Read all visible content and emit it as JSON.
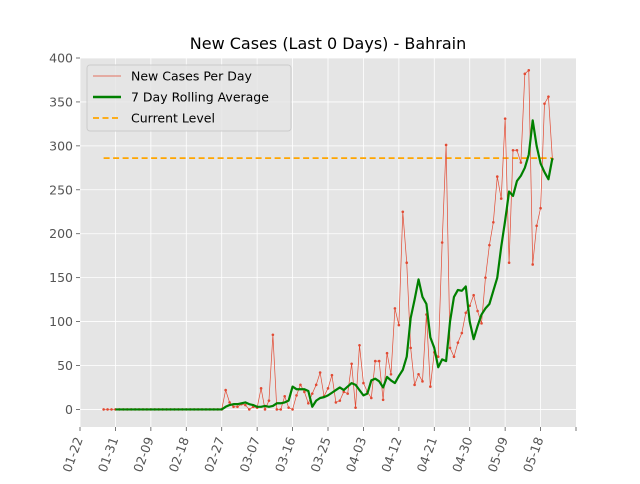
{
  "chart_data": {
    "type": "line",
    "title": "New Cases (Last 0 Days) - Bahrain",
    "xlabel": "",
    "ylabel": "",
    "ylim": [
      -20,
      400
    ],
    "xlim": [
      "2020-01-22",
      "2020-05-27"
    ],
    "grid": true,
    "legend_position": "top-left",
    "yticks": [
      0,
      50,
      100,
      150,
      200,
      250,
      300,
      350,
      400
    ],
    "xticks": [
      "01-22",
      "01-31",
      "02-09",
      "02-18",
      "02-27",
      "03-07",
      "03-16",
      "03-25",
      "04-03",
      "04-12",
      "04-21",
      "04-30",
      "05-09",
      "05-18"
    ],
    "xtick_dates": [
      "2020-01-22",
      "2020-01-31",
      "2020-02-09",
      "2020-02-18",
      "2020-02-27",
      "2020-03-07",
      "2020-03-16",
      "2020-03-25",
      "2020-04-03",
      "2020-04-12",
      "2020-04-21",
      "2020-04-30",
      "2020-05-09",
      "2020-05-18"
    ],
    "colors": {
      "daily": "#e24a33",
      "rolling": "#008000",
      "current": "#ffa500",
      "background": "#e5e5e5",
      "grid": "#ffffff"
    },
    "series": [
      {
        "name": "New Cases Per Day",
        "style": "thin line with point markers",
        "x": [
          "2020-01-28",
          "2020-01-29",
          "2020-01-30",
          "2020-01-31",
          "2020-02-01",
          "2020-02-02",
          "2020-02-03",
          "2020-02-04",
          "2020-02-05",
          "2020-02-06",
          "2020-02-07",
          "2020-02-08",
          "2020-02-09",
          "2020-02-10",
          "2020-02-11",
          "2020-02-12",
          "2020-02-13",
          "2020-02-14",
          "2020-02-15",
          "2020-02-16",
          "2020-02-17",
          "2020-02-18",
          "2020-02-19",
          "2020-02-20",
          "2020-02-21",
          "2020-02-22",
          "2020-02-23",
          "2020-02-24",
          "2020-02-25",
          "2020-02-26",
          "2020-02-27",
          "2020-02-28",
          "2020-02-29",
          "2020-03-01",
          "2020-03-02",
          "2020-03-03",
          "2020-03-04",
          "2020-03-05",
          "2020-03-06",
          "2020-03-07",
          "2020-03-08",
          "2020-03-09",
          "2020-03-10",
          "2020-03-11",
          "2020-03-12",
          "2020-03-13",
          "2020-03-14",
          "2020-03-15",
          "2020-03-16",
          "2020-03-17",
          "2020-03-18",
          "2020-03-19",
          "2020-03-20",
          "2020-03-21",
          "2020-03-22",
          "2020-03-23",
          "2020-03-24",
          "2020-03-25",
          "2020-03-26",
          "2020-03-27",
          "2020-03-28",
          "2020-03-29",
          "2020-03-30",
          "2020-03-31",
          "2020-04-01",
          "2020-04-02",
          "2020-04-03",
          "2020-04-04",
          "2020-04-05",
          "2020-04-06",
          "2020-04-07",
          "2020-04-08",
          "2020-04-09",
          "2020-04-10",
          "2020-04-11",
          "2020-04-12",
          "2020-04-13",
          "2020-04-14",
          "2020-04-15",
          "2020-04-16",
          "2020-04-17",
          "2020-04-18",
          "2020-04-19",
          "2020-04-20",
          "2020-04-21",
          "2020-04-22",
          "2020-04-23",
          "2020-04-24",
          "2020-04-25",
          "2020-04-26",
          "2020-04-27",
          "2020-04-28",
          "2020-04-29",
          "2020-04-30",
          "2020-05-01",
          "2020-05-02",
          "2020-05-03",
          "2020-05-04",
          "2020-05-05",
          "2020-05-06",
          "2020-05-07",
          "2020-05-08",
          "2020-05-09",
          "2020-05-10",
          "2020-05-11",
          "2020-05-12",
          "2020-05-13",
          "2020-05-14",
          "2020-05-15",
          "2020-05-16",
          "2020-05-17",
          "2020-05-18",
          "2020-05-19",
          "2020-05-20",
          "2020-05-21"
        ],
        "values": [
          0,
          0,
          0,
          0,
          0,
          0,
          0,
          0,
          0,
          0,
          0,
          0,
          0,
          0,
          0,
          0,
          0,
          0,
          0,
          0,
          0,
          0,
          0,
          0,
          0,
          0,
          0,
          0,
          0,
          0,
          0,
          22,
          8,
          3,
          3,
          6,
          5,
          0,
          3,
          2,
          24,
          0,
          10,
          85,
          0,
          0,
          15,
          2,
          0,
          16,
          28,
          20,
          7,
          18,
          28,
          42,
          15,
          24,
          39,
          8,
          10,
          20,
          18,
          52,
          2,
          73,
          30,
          20,
          13,
          55,
          55,
          11,
          64,
          40,
          115,
          96,
          225,
          167,
          70,
          28,
          40,
          32,
          108,
          26,
          65,
          60,
          190,
          301,
          70,
          60,
          76,
          87,
          110,
          118,
          130,
          112,
          98,
          150,
          187,
          213,
          265,
          240,
          331,
          167,
          295,
          295,
          281,
          382,
          386,
          165,
          209,
          229,
          348,
          356,
          285
        ]
      },
      {
        "name": "7 Day Rolling Average",
        "style": "thick line",
        "x": [
          "2020-01-31",
          "2020-02-27",
          "2020-02-28",
          "2020-02-29",
          "2020-03-01",
          "2020-03-02",
          "2020-03-03",
          "2020-03-04",
          "2020-03-05",
          "2020-03-06",
          "2020-03-07",
          "2020-03-08",
          "2020-03-09",
          "2020-03-10",
          "2020-03-11",
          "2020-03-12",
          "2020-03-13",
          "2020-03-14",
          "2020-03-15",
          "2020-03-16",
          "2020-03-17",
          "2020-03-18",
          "2020-03-19",
          "2020-03-20",
          "2020-03-21",
          "2020-03-22",
          "2020-03-23",
          "2020-03-24",
          "2020-03-25",
          "2020-03-26",
          "2020-03-27",
          "2020-03-28",
          "2020-03-29",
          "2020-03-30",
          "2020-03-31",
          "2020-04-01",
          "2020-04-02",
          "2020-04-03",
          "2020-04-04",
          "2020-04-05",
          "2020-04-06",
          "2020-04-07",
          "2020-04-08",
          "2020-04-09",
          "2020-04-10",
          "2020-04-11",
          "2020-04-12",
          "2020-04-13",
          "2020-04-14",
          "2020-04-15",
          "2020-04-16",
          "2020-04-17",
          "2020-04-18",
          "2020-04-19",
          "2020-04-20",
          "2020-04-21",
          "2020-04-22",
          "2020-04-23",
          "2020-04-24",
          "2020-04-25",
          "2020-04-26",
          "2020-04-27",
          "2020-04-28",
          "2020-04-29",
          "2020-04-30",
          "2020-05-01",
          "2020-05-02",
          "2020-05-03",
          "2020-05-04",
          "2020-05-05",
          "2020-05-06",
          "2020-05-07",
          "2020-05-08",
          "2020-05-09",
          "2020-05-10",
          "2020-05-11",
          "2020-05-12",
          "2020-05-13",
          "2020-05-14",
          "2020-05-15",
          "2020-05-16",
          "2020-05-17",
          "2020-05-18",
          "2020-05-19",
          "2020-05-20",
          "2020-05-21"
        ],
        "values": [
          0,
          0,
          3,
          5,
          6,
          6,
          7,
          8,
          6,
          5,
          3,
          3,
          4,
          3,
          4,
          7,
          7,
          8,
          10,
          26,
          23,
          23,
          23,
          21,
          3,
          10,
          13,
          14,
          16,
          19,
          22,
          25,
          22,
          26,
          30,
          28,
          22,
          16,
          18,
          33,
          35,
          32,
          25,
          37,
          33,
          30,
          38,
          45,
          60,
          104,
          125,
          148,
          128,
          120,
          82,
          70,
          48,
          57,
          55,
          100,
          128,
          136,
          135,
          140,
          100,
          80,
          95,
          108,
          115,
          120,
          135,
          150,
          185,
          215,
          248,
          243,
          260,
          266,
          275,
          290,
          329,
          300,
          280,
          270,
          262,
          286
        ]
      }
    ],
    "reference_line": {
      "name": "Current Level",
      "value": 286,
      "x_start": "2020-01-28",
      "x_end": "2020-05-21"
    }
  }
}
